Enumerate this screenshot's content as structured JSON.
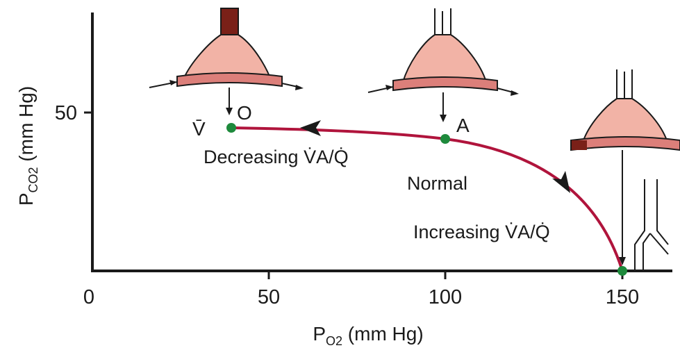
{
  "title": "",
  "x_axis": {
    "label_main": "P",
    "label_sub": "O2",
    "label_unit": " (mm Hg)",
    "ticks": [
      "0",
      "50",
      "100",
      "150"
    ],
    "tick_values": [
      0,
      50,
      100,
      150
    ],
    "range": [
      0,
      165
    ]
  },
  "y_axis": {
    "label_main": "P",
    "label_sub": "CO2",
    "label_unit": " (mm Hg)",
    "ticks": [
      "50"
    ],
    "tick_values": [
      50
    ],
    "range": [
      0,
      75
    ]
  },
  "points": [
    {
      "id": "O",
      "label": "O",
      "extra_label": "V̄",
      "po2": 40,
      "pco2": 45
    },
    {
      "id": "A",
      "label": "A",
      "po2": 100,
      "pco2": 40
    },
    {
      "id": "I",
      "label": "",
      "po2": 150,
      "pco2": 0
    }
  ],
  "region_labels": {
    "decreasing": "Decreasing V̇A/Q̇",
    "normal": "Normal",
    "increasing": "Increasing V̇A/Q̇"
  },
  "colors": {
    "curve": "#b0143c",
    "point": "#1e8a3c",
    "alveolus": "#f2b3a6",
    "capillary": "#dc7f7a",
    "blocked": "#7a2018",
    "axis": "#1a1a1a"
  },
  "icons": [
    "alveolus-blocked-icon",
    "alveolus-normal-icon",
    "alveolus-dead-space-icon",
    "airway-branch-icon"
  ]
}
